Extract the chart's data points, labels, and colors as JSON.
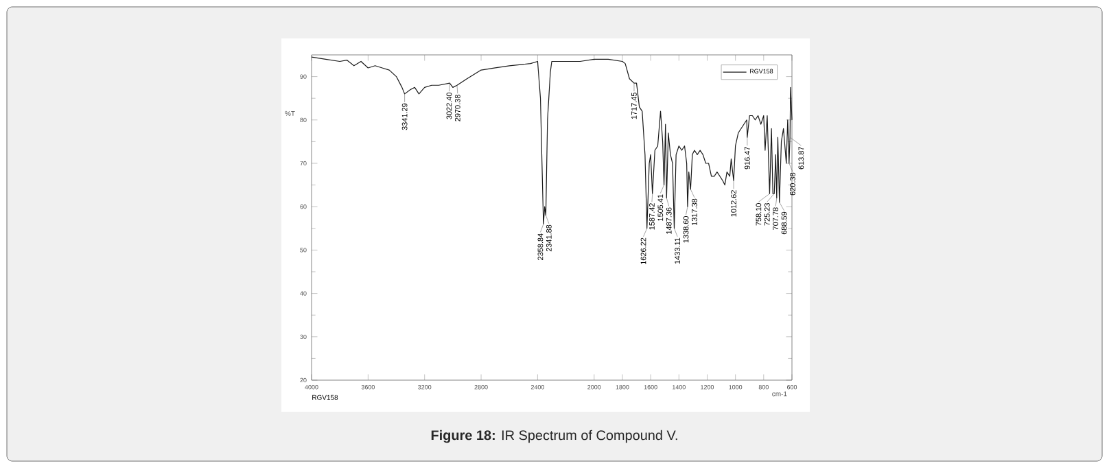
{
  "chart_data": {
    "type": "line",
    "title": "**Figure 18:** IR Spectrum of Compound V.",
    "xlabel": "cm-1",
    "ylabel": "%T",
    "xlim": [
      4000,
      600
    ],
    "xticks": [
      4000,
      3600,
      3200,
      2800,
      2400,
      2000,
      1800,
      1600,
      1400,
      1200,
      1000,
      800,
      600
    ],
    "ylim": [
      20,
      95
    ],
    "yticks": [
      20,
      30,
      40,
      50,
      60,
      70,
      80,
      90
    ],
    "grid": false,
    "legend": "top right",
    "marker": "none",
    "line_style": "solid",
    "x": [
      4000,
      3900,
      3800,
      3750,
      3700,
      3650,
      3600,
      3550,
      3500,
      3450,
      3400,
      3360,
      3341.29,
      3300,
      3270,
      3240,
      3200,
      3150,
      3100,
      3022.4,
      3000,
      2970.38,
      2900,
      2800,
      2700,
      2600,
      2450,
      2400,
      2380,
      2358.84,
      2350,
      2341.88,
      2330,
      2310,
      2300,
      2200,
      2100,
      2000,
      1900,
      1800,
      1780,
      1750,
      1717.45,
      1700,
      1680,
      1660,
      1640,
      1626.22,
      1610,
      1600,
      1587.42,
      1570,
      1550,
      1530,
      1515,
      1505.41,
      1495,
      1487.36,
      1475,
      1460,
      1445,
      1433.11,
      1420,
      1400,
      1380,
      1360,
      1345,
      1338.6,
      1330,
      1317.38,
      1305,
      1290,
      1270,
      1250,
      1230,
      1210,
      1190,
      1170,
      1150,
      1130,
      1110,
      1090,
      1075,
      1060,
      1040,
      1030,
      1012.62,
      1000,
      980,
      960,
      940,
      920,
      916.47,
      900,
      880,
      860,
      840,
      820,
      800,
      790,
      775,
      758.1,
      745,
      735,
      725.23,
      715,
      707.78,
      700,
      688.59,
      675,
      660,
      640,
      630,
      620.38,
      613.87,
      610,
      600
    ],
    "series": [
      {
        "name": "RGV158",
        "color": "#1a1a1a",
        "values": [
          94.5,
          94,
          93.5,
          93.8,
          92.5,
          93.5,
          92,
          92.5,
          92,
          91.5,
          90,
          87.5,
          86,
          87,
          87.5,
          86,
          87.5,
          88,
          88,
          88.5,
          87.5,
          88,
          89.5,
          91.5,
          92,
          92.5,
          93,
          93.5,
          85,
          56,
          60,
          58,
          80,
          91,
          93.5,
          93.5,
          93.5,
          94,
          94,
          93.5,
          93,
          89.5,
          88.5,
          88.5,
          83,
          82,
          72,
          55,
          70,
          72,
          63,
          73,
          74,
          82,
          75,
          65,
          79,
          62,
          77,
          72,
          70,
          55,
          72,
          74,
          73,
          74,
          70,
          60,
          68,
          64,
          72,
          73,
          72,
          73,
          72,
          70,
          70,
          67,
          67,
          68,
          67,
          66,
          65,
          68,
          67,
          71,
          66,
          74,
          77,
          78,
          79,
          80,
          76,
          81,
          81,
          80,
          81,
          79,
          81,
          73,
          81,
          63,
          78,
          63,
          63,
          72,
          62,
          76,
          61,
          75,
          78,
          70,
          80,
          70,
          76,
          87.5,
          80
        ]
      }
    ],
    "annotations": [
      {
        "text": "3341.29",
        "x": 3341.29,
        "y": 86
      },
      {
        "text": "3022.40",
        "x": 3022.4,
        "y": 88.5
      },
      {
        "text": "2970.38",
        "x": 2970.38,
        "y": 88
      },
      {
        "text": "2358.84",
        "x": 2358.84,
        "y": 56
      },
      {
        "text": "2341.88",
        "x": 2341.88,
        "y": 58
      },
      {
        "text": "1717.45",
        "x": 1717.45,
        "y": 88.5
      },
      {
        "text": "1626.22",
        "x": 1626.22,
        "y": 55
      },
      {
        "text": "1587.42",
        "x": 1587.42,
        "y": 63
      },
      {
        "text": "1505.41",
        "x": 1505.41,
        "y": 65
      },
      {
        "text": "1487.36",
        "x": 1487.36,
        "y": 62
      },
      {
        "text": "1433.11",
        "x": 1433.11,
        "y": 55
      },
      {
        "text": "1338.60",
        "x": 1338.6,
        "y": 60
      },
      {
        "text": "1317.38",
        "x": 1317.38,
        "y": 64
      },
      {
        "text": "1012.62",
        "x": 1012.62,
        "y": 66
      },
      {
        "text": "916.47",
        "x": 916.47,
        "y": 76
      },
      {
        "text": "758.10",
        "x": 758.1,
        "y": 63
      },
      {
        "text": "725.23",
        "x": 725.23,
        "y": 63
      },
      {
        "text": "707.78",
        "x": 707.78,
        "y": 62
      },
      {
        "text": "688.59",
        "x": 688.59,
        "y": 61
      },
      {
        "text": "620.38",
        "x": 620.38,
        "y": 70
      },
      {
        "text": "613.87",
        "x": 613.87,
        "y": 76
      },
      "RGV158"
    ]
  }
}
